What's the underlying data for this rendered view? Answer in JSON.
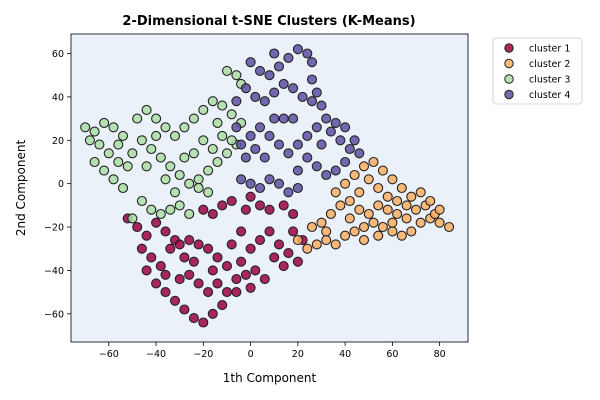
{
  "chart_data": {
    "type": "scatter",
    "title": "2-Dimensional t-SNE Clusters (K-Means)",
    "xlabel": "1th Component",
    "ylabel": "2nd Component",
    "xlim": [
      -76,
      92
    ],
    "ylim": [
      -73,
      69
    ],
    "xticks": [
      -60,
      -40,
      -20,
      0,
      20,
      40,
      60,
      80
    ],
    "yticks": [
      -60,
      -40,
      -20,
      0,
      20,
      40,
      60
    ],
    "grid": false,
    "legend_position": "outside-top-right",
    "plot_background": "#eaf1f8",
    "marker_edge_color": "#222222",
    "series": [
      {
        "name": "cluster 1",
        "color": "#9e0142",
        "points": [
          [
            -52,
            -16
          ],
          [
            -48,
            -20
          ],
          [
            -44,
            -24
          ],
          [
            -40,
            -18
          ],
          [
            -36,
            -22
          ],
          [
            -32,
            -26
          ],
          [
            -46,
            -30
          ],
          [
            -42,
            -34
          ],
          [
            -38,
            -38
          ],
          [
            -34,
            -30
          ],
          [
            -30,
            -28
          ],
          [
            -26,
            -26
          ],
          [
            -22,
            -28
          ],
          [
            -18,
            -30
          ],
          [
            -14,
            -34
          ],
          [
            -10,
            -38
          ],
          [
            -44,
            -40
          ],
          [
            -40,
            -46
          ],
          [
            -36,
            -50
          ],
          [
            -32,
            -54
          ],
          [
            -30,
            -44
          ],
          [
            -26,
            -42
          ],
          [
            -22,
            -46
          ],
          [
            -18,
            -50
          ],
          [
            -28,
            -58
          ],
          [
            -24,
            -62
          ],
          [
            -20,
            -64
          ],
          [
            -16,
            -60
          ],
          [
            -12,
            -56
          ],
          [
            -10,
            -50
          ],
          [
            -14,
            -46
          ],
          [
            -6,
            -44
          ],
          [
            -2,
            -42
          ],
          [
            2,
            -40
          ],
          [
            6,
            -44
          ],
          [
            -4,
            -36
          ],
          [
            0,
            -30
          ],
          [
            4,
            -26
          ],
          [
            8,
            -22
          ],
          [
            12,
            -28
          ],
          [
            16,
            -32
          ],
          [
            20,
            -36
          ],
          [
            14,
            -38
          ],
          [
            22,
            -26
          ],
          [
            18,
            -22
          ],
          [
            -8,
            -28
          ],
          [
            -4,
            -22
          ],
          [
            -8,
            -8
          ],
          [
            -12,
            -10
          ],
          [
            -16,
            -14
          ],
          [
            -20,
            -12
          ],
          [
            0,
            -6
          ],
          [
            4,
            -10
          ],
          [
            8,
            -12
          ],
          [
            14,
            -10
          ],
          [
            18,
            -14
          ],
          [
            -2,
            -12
          ],
          [
            -28,
            -34
          ],
          [
            -36,
            -42
          ],
          [
            -16,
            -40
          ],
          [
            -6,
            -50
          ],
          [
            0,
            -48
          ],
          [
            10,
            -34
          ],
          [
            -24,
            -36
          ]
        ]
      },
      {
        "name": "cluster 2",
        "color": "#fdae61",
        "points": [
          [
            20,
            -26
          ],
          [
            24,
            -30
          ],
          [
            28,
            -28
          ],
          [
            32,
            -26
          ],
          [
            36,
            -28
          ],
          [
            40,
            -24
          ],
          [
            44,
            -22
          ],
          [
            48,
            -20
          ],
          [
            52,
            -18
          ],
          [
            56,
            -20
          ],
          [
            60,
            -22
          ],
          [
            64,
            -24
          ],
          [
            68,
            -22
          ],
          [
            72,
            -18
          ],
          [
            76,
            -16
          ],
          [
            80,
            -18
          ],
          [
            84,
            -20
          ],
          [
            30,
            -18
          ],
          [
            34,
            -14
          ],
          [
            38,
            -10
          ],
          [
            42,
            -8
          ],
          [
            46,
            -12
          ],
          [
            50,
            -14
          ],
          [
            54,
            -10
          ],
          [
            58,
            -12
          ],
          [
            62,
            -14
          ],
          [
            66,
            -16
          ],
          [
            70,
            -12
          ],
          [
            74,
            -10
          ],
          [
            78,
            -14
          ],
          [
            36,
            -4
          ],
          [
            40,
            0
          ],
          [
            44,
            4
          ],
          [
            48,
            8
          ],
          [
            52,
            10
          ],
          [
            56,
            6
          ],
          [
            60,
            2
          ],
          [
            64,
            -2
          ],
          [
            68,
            -6
          ],
          [
            72,
            -4
          ],
          [
            42,
            -16
          ],
          [
            46,
            -4
          ],
          [
            50,
            2
          ],
          [
            54,
            -2
          ],
          [
            58,
            -6
          ],
          [
            62,
            -8
          ],
          [
            26,
            -20
          ],
          [
            32,
            -22
          ],
          [
            66,
            -10
          ],
          [
            76,
            -8
          ],
          [
            80,
            -12
          ],
          [
            60,
            -18
          ],
          [
            54,
            -24
          ],
          [
            48,
            -26
          ]
        ]
      },
      {
        "name": "cluster 3",
        "color": "#abdda4",
        "points": [
          [
            -70,
            26
          ],
          [
            -66,
            24
          ],
          [
            -62,
            28
          ],
          [
            -58,
            26
          ],
          [
            -54,
            22
          ],
          [
            -68,
            20
          ],
          [
            -64,
            18
          ],
          [
            -60,
            14
          ],
          [
            -56,
            10
          ],
          [
            -52,
            8
          ],
          [
            -66,
            10
          ],
          [
            -62,
            6
          ],
          [
            -58,
            2
          ],
          [
            -54,
            -2
          ],
          [
            -48,
            30
          ],
          [
            -44,
            34
          ],
          [
            -40,
            30
          ],
          [
            -36,
            26
          ],
          [
            -32,
            22
          ],
          [
            -28,
            26
          ],
          [
            -24,
            30
          ],
          [
            -20,
            34
          ],
          [
            -16,
            38
          ],
          [
            -12,
            36
          ],
          [
            -8,
            32
          ],
          [
            -4,
            28
          ],
          [
            -46,
            20
          ],
          [
            -42,
            16
          ],
          [
            -38,
            12
          ],
          [
            -34,
            8
          ],
          [
            -30,
            4
          ],
          [
            -26,
            0
          ],
          [
            -22,
            2
          ],
          [
            -18,
            6
          ],
          [
            -14,
            10
          ],
          [
            -10,
            14
          ],
          [
            -6,
            18
          ],
          [
            -42,
            -12
          ],
          [
            -38,
            -14
          ],
          [
            -34,
            -12
          ],
          [
            -30,
            -10
          ],
          [
            -26,
            -14
          ],
          [
            -50,
            -16
          ],
          [
            -46,
            -8
          ],
          [
            -36,
            2
          ],
          [
            -32,
            -4
          ],
          [
            -20,
            20
          ],
          [
            -16,
            16
          ],
          [
            -12,
            22
          ],
          [
            -8,
            20
          ],
          [
            -10,
            52
          ],
          [
            -6,
            50
          ],
          [
            -4,
            46
          ],
          [
            -14,
            28
          ],
          [
            -24,
            14
          ],
          [
            -44,
            8
          ],
          [
            -28,
            12
          ],
          [
            -40,
            22
          ],
          [
            -18,
            -4
          ],
          [
            -50,
            14
          ],
          [
            -56,
            18
          ],
          [
            -22,
            -2
          ]
        ]
      },
      {
        "name": "cluster 4",
        "color": "#5e4fa2",
        "points": [
          [
            0,
            56
          ],
          [
            4,
            52
          ],
          [
            8,
            50
          ],
          [
            12,
            54
          ],
          [
            16,
            58
          ],
          [
            20,
            62
          ],
          [
            24,
            60
          ],
          [
            26,
            56
          ],
          [
            -2,
            44
          ],
          [
            2,
            40
          ],
          [
            6,
            38
          ],
          [
            10,
            42
          ],
          [
            14,
            46
          ],
          [
            18,
            44
          ],
          [
            22,
            40
          ],
          [
            26,
            38
          ],
          [
            30,
            36
          ],
          [
            32,
            30
          ],
          [
            28,
            26
          ],
          [
            24,
            22
          ],
          [
            20,
            18
          ],
          [
            16,
            14
          ],
          [
            12,
            18
          ],
          [
            8,
            22
          ],
          [
            4,
            26
          ],
          [
            0,
            22
          ],
          [
            -4,
            18
          ],
          [
            -2,
            12
          ],
          [
            2,
            16
          ],
          [
            6,
            12
          ],
          [
            34,
            24
          ],
          [
            38,
            20
          ],
          [
            42,
            16
          ],
          [
            46,
            14
          ],
          [
            40,
            10
          ],
          [
            36,
            6
          ],
          [
            32,
            4
          ],
          [
            28,
            8
          ],
          [
            24,
            12
          ],
          [
            20,
            6
          ],
          [
            -4,
            2
          ],
          [
            0,
            0
          ],
          [
            4,
            -2
          ],
          [
            8,
            2
          ],
          [
            12,
            0
          ],
          [
            16,
            -4
          ],
          [
            20,
            -2
          ],
          [
            36,
            28
          ],
          [
            40,
            26
          ],
          [
            30,
            18
          ],
          [
            14,
            30
          ],
          [
            18,
            30
          ],
          [
            -6,
            38
          ],
          [
            10,
            60
          ],
          [
            26,
            48
          ],
          [
            28,
            42
          ],
          [
            10,
            30
          ],
          [
            -6,
            26
          ],
          [
            44,
            20
          ]
        ]
      }
    ]
  }
}
